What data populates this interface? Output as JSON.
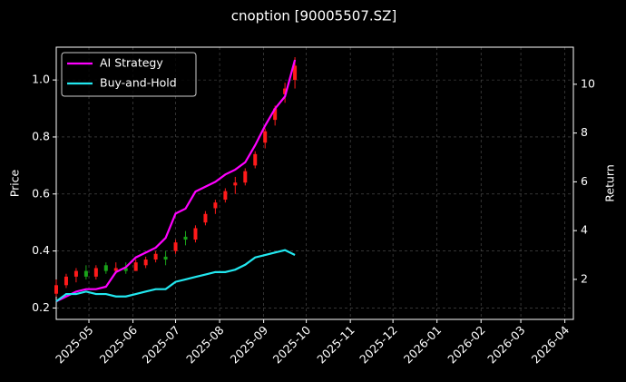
{
  "chart_data": {
    "type": "candlestick",
    "title": "cnoption [90005507.SZ]",
    "y_label": "Price",
    "y2_label": "Return",
    "x": [
      "2025-04-08",
      "2025-04-15",
      "2025-04-22",
      "2025-04-29",
      "2025-05-06",
      "2025-05-13",
      "2025-05-20",
      "2025-05-27",
      "2025-06-03",
      "2025-06-10",
      "2025-06-17",
      "2025-06-24",
      "2025-07-01",
      "2025-07-08",
      "2025-07-15",
      "2025-07-22",
      "2025-07-29",
      "2025-08-05",
      "2025-08-12",
      "2025-08-19",
      "2025-08-26",
      "2025-09-02",
      "2025-09-09",
      "2025-09-16",
      "2025-09-23"
    ],
    "ohlc": {
      "open": [
        0.25,
        0.28,
        0.31,
        0.33,
        0.31,
        0.35,
        0.33,
        0.34,
        0.33,
        0.35,
        0.37,
        0.38,
        0.4,
        0.45,
        0.44,
        0.5,
        0.55,
        0.58,
        0.63,
        0.64,
        0.7,
        0.78,
        0.86,
        0.95,
        1.0
      ],
      "high": [
        0.3,
        0.32,
        0.34,
        0.35,
        0.35,
        0.36,
        0.36,
        0.36,
        0.37,
        0.38,
        0.4,
        0.4,
        0.44,
        0.47,
        0.49,
        0.54,
        0.58,
        0.62,
        0.66,
        0.69,
        0.75,
        0.83,
        0.91,
        0.99,
        1.08
      ],
      "low": [
        0.24,
        0.27,
        0.29,
        0.3,
        0.3,
        0.32,
        0.32,
        0.32,
        0.33,
        0.34,
        0.36,
        0.35,
        0.39,
        0.42,
        0.43,
        0.49,
        0.53,
        0.57,
        0.6,
        0.63,
        0.69,
        0.76,
        0.84,
        0.92,
        0.97
      ],
      "close": [
        0.28,
        0.31,
        0.33,
        0.31,
        0.34,
        0.33,
        0.34,
        0.33,
        0.36,
        0.37,
        0.39,
        0.37,
        0.43,
        0.44,
        0.48,
        0.53,
        0.57,
        0.61,
        0.64,
        0.68,
        0.74,
        0.82,
        0.9,
        0.97,
        1.05
      ],
      "up_color": "#ff1a1a",
      "down_color": "#1aa31a"
    },
    "series": [
      {
        "name": "AI Strategy",
        "color": "#ff00ff",
        "axis": "y2",
        "values": [
          1.1,
          1.3,
          1.5,
          1.6,
          1.6,
          1.7,
          2.3,
          2.5,
          2.9,
          3.1,
          3.3,
          3.7,
          4.7,
          4.9,
          5.6,
          5.8,
          6.0,
          6.3,
          6.5,
          6.8,
          7.5,
          8.3,
          9.0,
          9.5,
          11.0
        ]
      },
      {
        "name": "Buy-and-Hold",
        "color": "#22e8f0",
        "axis": "y2",
        "values": [
          1.1,
          1.4,
          1.4,
          1.5,
          1.4,
          1.4,
          1.3,
          1.3,
          1.4,
          1.5,
          1.6,
          1.6,
          1.9,
          2.0,
          2.1,
          2.2,
          2.3,
          2.3,
          2.4,
          2.6,
          2.9,
          3.0,
          3.1,
          3.2,
          3.0
        ]
      }
    ],
    "xlim": [
      "2025-04-08",
      "2026-04-07"
    ],
    "xticks": [
      "2025-05",
      "2025-06",
      "2025-07",
      "2025-08",
      "2025-09",
      "2025-10",
      "2025-11",
      "2025-12",
      "2026-01",
      "2026-02",
      "2026-03",
      "2026-04"
    ],
    "ylim": [
      0.16,
      1.115
    ],
    "yticks": [
      0.2,
      0.4,
      0.6,
      0.8,
      {
        "value": 1,
        "label": "1.0"
      }
    ],
    "y2lim": [
      0.36,
      11.52
    ],
    "y2ticks": [
      2,
      4,
      6,
      8,
      10
    ],
    "grid": true,
    "legend": "upper left"
  }
}
